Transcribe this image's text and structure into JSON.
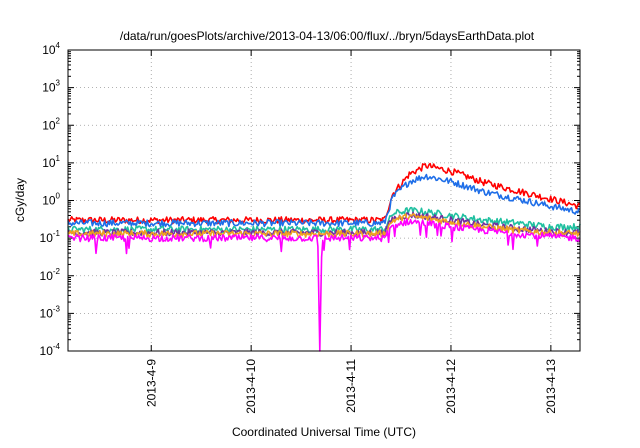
{
  "chart_data": {
    "type": "line",
    "title": "/data/run/goesPlots/archive/2013-04-13/06:00/flux/../bryn/5daysEarthData.plot",
    "xlabel": "Coordinated Universal Time (UTC)",
    "ylabel": "cGy/day",
    "yscale": "log",
    "ylim": [
      0.0001,
      10000
    ],
    "xlim": [
      "2013-04-08 04:00",
      "2013-04-13 07:00"
    ],
    "grid": true,
    "y_ticks": [
      {
        "base": "10",
        "exp": "-4",
        "value": 0.0001
      },
      {
        "base": "10",
        "exp": "-3",
        "value": 0.001
      },
      {
        "base": "10",
        "exp": "-2",
        "value": 0.01
      },
      {
        "base": "10",
        "exp": "-1",
        "value": 0.1
      },
      {
        "base": "10",
        "exp": "0",
        "value": 1
      },
      {
        "base": "10",
        "exp": "1",
        "value": 10
      },
      {
        "base": "10",
        "exp": "2",
        "value": 100
      },
      {
        "base": "10",
        "exp": "3",
        "value": 1000
      },
      {
        "base": "10",
        "exp": "4",
        "value": 10000
      }
    ],
    "x_ticks": [
      {
        "label": "2013-4-9",
        "value": "2013-04-09 00:00"
      },
      {
        "label": "2013-4-10",
        "value": "2013-04-10 00:00"
      },
      {
        "label": "2013-4-11",
        "value": "2013-04-11 00:00"
      },
      {
        "label": "2013-4-12",
        "value": "2013-04-12 00:00"
      },
      {
        "label": "2013-4-13",
        "value": "2013-04-13 00:00"
      }
    ],
    "series": [
      {
        "color": "#ff0000",
        "x": [
          "2013-04-08 04:00",
          "2013-04-11 08:00",
          "2013-04-11 10:00",
          "2013-04-11 14:00",
          "2013-04-11 18:00",
          "2013-04-12 00:00",
          "2013-04-12 08:00",
          "2013-04-12 16:00",
          "2013-04-13 00:00",
          "2013-04-13 07:00"
        ],
        "y": [
          0.3,
          0.3,
          1.5,
          5,
          8.5,
          6,
          3,
          1.8,
          1.1,
          0.7
        ]
      },
      {
        "color": "#1e6ee8",
        "x": [
          "2013-04-08 04:00",
          "2013-04-11 08:00",
          "2013-04-11 10:00",
          "2013-04-11 14:00",
          "2013-04-11 18:00",
          "2013-04-12 00:00",
          "2013-04-12 08:00",
          "2013-04-12 16:00",
          "2013-04-13 00:00",
          "2013-04-13 07:00"
        ],
        "y": [
          0.25,
          0.25,
          1.2,
          3.2,
          4.5,
          3.2,
          1.7,
          1.1,
          0.7,
          0.5
        ]
      },
      {
        "color": "#20c0a0",
        "x": [
          "2013-04-08 04:00",
          "2013-04-11 08:00",
          "2013-04-11 10:00",
          "2013-04-11 14:00",
          "2013-04-11 18:00",
          "2013-04-12 00:00",
          "2013-04-12 08:00",
          "2013-04-12 16:00",
          "2013-04-13 00:00",
          "2013-04-13 07:00"
        ],
        "y": [
          0.17,
          0.17,
          0.45,
          0.55,
          0.5,
          0.4,
          0.3,
          0.25,
          0.2,
          0.2
        ]
      },
      {
        "color": "#7030a0",
        "x": [
          "2013-04-08 04:00",
          "2013-04-11 08:00",
          "2013-04-11 10:00",
          "2013-04-11 14:00",
          "2013-04-11 18:00",
          "2013-04-12 00:00",
          "2013-04-12 08:00",
          "2013-04-12 16:00",
          "2013-04-13 00:00",
          "2013-04-13 07:00"
        ],
        "y": [
          0.14,
          0.14,
          0.33,
          0.42,
          0.38,
          0.3,
          0.22,
          0.18,
          0.15,
          0.14
        ]
      },
      {
        "color": "#f0a020",
        "x": [
          "2013-04-08 04:00",
          "2013-04-11 08:00",
          "2013-04-11 10:00",
          "2013-04-11 14:00",
          "2013-04-11 18:00",
          "2013-04-12 00:00",
          "2013-04-12 08:00",
          "2013-04-12 16:00",
          "2013-04-13 00:00",
          "2013-04-13 07:00"
        ],
        "y": [
          0.13,
          0.13,
          0.3,
          0.38,
          0.34,
          0.27,
          0.2,
          0.16,
          0.14,
          0.13
        ]
      },
      {
        "color": "#ff00ff",
        "x": [
          "2013-04-08 04:00",
          "2013-04-10 16:00",
          "2013-04-10 16:30",
          "2013-04-10 17:00",
          "2013-04-11 08:00",
          "2013-04-11 10:00",
          "2013-04-11 14:00",
          "2013-04-11 18:00",
          "2013-04-12 00:00",
          "2013-04-12 08:00",
          "2013-04-12 16:00",
          "2013-04-13 00:00",
          "2013-04-13 07:00"
        ],
        "y": [
          0.1,
          0.1,
          0.0001,
          0.1,
          0.1,
          0.22,
          0.28,
          0.25,
          0.2,
          0.16,
          0.13,
          0.11,
          0.1
        ]
      }
    ]
  }
}
